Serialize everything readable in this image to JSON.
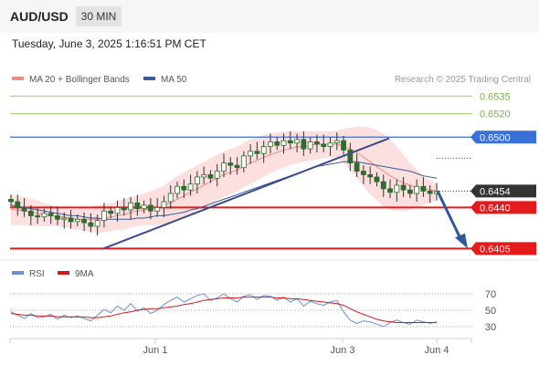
{
  "header": {
    "pair": "AUD/USD",
    "timeframe": "30 MIN",
    "datetime": "Tuesday, June 3, 2025 1:16:51 PM CET"
  },
  "credit": "Research © 2025 Trading Central",
  "colors": {
    "price_candle": "#2e6b2e",
    "ma20": "#f28b82",
    "ma50": "#3a5a9a",
    "bollinger_fill": "#fbd5d5",
    "support_red": "#e31b1b",
    "pivot_blue": "#3a6fd8",
    "resistance_green": "#9ccc65",
    "current_price_tag": "#333333",
    "rsi_line": "#6b8fd6",
    "rsi_9ma": "#d11a1a",
    "trend_line": "#3b4a8a",
    "forecast_arrow": "#2f5a99"
  },
  "chart_data": [
    {
      "type": "line",
      "title": "",
      "panel": "price",
      "legend": [
        {
          "name": "MA 20 + Bollinger Bands",
          "color": "#f28b82"
        },
        {
          "name": "MA 50",
          "color": "#3a5a9a"
        }
      ],
      "legend_position": "top-left",
      "x_ticks": [
        "Jun 1",
        "Jun 3",
        "Jun 4"
      ],
      "ylim": [
        0.6396,
        0.655
      ],
      "levels": [
        {
          "label": "0.6535",
          "value": 0.6535,
          "style": "resistance"
        },
        {
          "label": "0.6520",
          "value": 0.652,
          "style": "resistance"
        },
        {
          "label": "0.6500",
          "value": 0.65,
          "style": "pivot"
        },
        {
          "label": "0.6454",
          "value": 0.6454,
          "style": "current"
        },
        {
          "label": "0.6440",
          "value": 0.644,
          "style": "support"
        },
        {
          "label": "0.6405",
          "value": 0.6405,
          "style": "support"
        }
      ],
      "price_path": [
        0.6445,
        0.644,
        0.6437,
        0.6433,
        0.6432,
        0.6435,
        0.6433,
        0.643,
        0.6431,
        0.6428,
        0.643,
        0.6427,
        0.6424,
        0.6429,
        0.6437,
        0.6435,
        0.644,
        0.6438,
        0.6444,
        0.6439,
        0.6442,
        0.6437,
        0.644,
        0.6445,
        0.6452,
        0.6458,
        0.6455,
        0.646,
        0.6466,
        0.6468,
        0.6465,
        0.6471,
        0.6478,
        0.6476,
        0.6474,
        0.6484,
        0.6488,
        0.6486,
        0.6492,
        0.6496,
        0.6493,
        0.6497,
        0.6495,
        0.6498,
        0.649,
        0.6496,
        0.6494,
        0.6492,
        0.6495,
        0.6497,
        0.6489,
        0.6478,
        0.6471,
        0.6468,
        0.6466,
        0.6462,
        0.6456,
        0.6453,
        0.6459,
        0.6455,
        0.6452,
        0.6458,
        0.6454,
        0.6452,
        0.6454
      ],
      "ma20": [
        0.6438,
        0.6438,
        0.6437,
        0.6436,
        0.6435,
        0.6434,
        0.6433,
        0.6432,
        0.6432,
        0.6431,
        0.643,
        0.643,
        0.643,
        0.643,
        0.6431,
        0.6432,
        0.6433,
        0.6434,
        0.6436,
        0.6437,
        0.6438,
        0.6439,
        0.644,
        0.6442,
        0.6444,
        0.6447,
        0.645,
        0.6453,
        0.6456,
        0.6459,
        0.6462,
        0.6465,
        0.6468,
        0.647,
        0.6472,
        0.6475,
        0.6478,
        0.648,
        0.6483,
        0.6485,
        0.6487,
        0.6489,
        0.649,
        0.6492,
        0.6492,
        0.6493,
        0.6494,
        0.6494,
        0.6494,
        0.6494,
        0.6492,
        0.649,
        0.6487,
        0.6483,
        0.6479,
        0.6475,
        0.6471,
        0.6467,
        0.6464,
        0.6461,
        0.6459,
        0.6457,
        0.6456,
        0.6455,
        0.6454
      ],
      "bb_upper": [
        0.6451,
        0.645,
        0.6449,
        0.6448,
        0.6446,
        0.6444,
        0.6442,
        0.644,
        0.644,
        0.6439,
        0.6439,
        0.644,
        0.6441,
        0.6442,
        0.6443,
        0.6444,
        0.6445,
        0.6447,
        0.6449,
        0.645,
        0.6452,
        0.6454,
        0.6456,
        0.6459,
        0.6463,
        0.6467,
        0.647,
        0.6473,
        0.6476,
        0.6479,
        0.6482,
        0.6485,
        0.6488,
        0.649,
        0.6492,
        0.6495,
        0.6498,
        0.65,
        0.6502,
        0.6503,
        0.6504,
        0.6505,
        0.6505,
        0.6505,
        0.6505,
        0.6505,
        0.6505,
        0.6505,
        0.6505,
        0.6506,
        0.6507,
        0.6508,
        0.6509,
        0.6509,
        0.6508,
        0.6506,
        0.6503,
        0.6498,
        0.6492,
        0.6485,
        0.6478,
        0.6472,
        0.6467,
        0.6463,
        0.646
      ],
      "bb_lower": [
        0.6425,
        0.6425,
        0.6425,
        0.6424,
        0.6424,
        0.6424,
        0.6424,
        0.6424,
        0.6423,
        0.6422,
        0.6421,
        0.642,
        0.6419,
        0.6418,
        0.6419,
        0.642,
        0.6421,
        0.6421,
        0.6423,
        0.6424,
        0.6425,
        0.6425,
        0.6425,
        0.6426,
        0.6427,
        0.6429,
        0.6431,
        0.6434,
        0.6437,
        0.644,
        0.6443,
        0.6446,
        0.6449,
        0.6451,
        0.6454,
        0.6457,
        0.646,
        0.6463,
        0.6466,
        0.6469,
        0.6472,
        0.6474,
        0.6476,
        0.6478,
        0.6479,
        0.648,
        0.6481,
        0.6482,
        0.6483,
        0.6482,
        0.6478,
        0.6472,
        0.6465,
        0.6458,
        0.6451,
        0.6446,
        0.6441,
        0.6438,
        0.6437,
        0.6437,
        0.6438,
        0.644,
        0.6442,
        0.6444,
        0.6446
      ],
      "ma50": [
        0.6442,
        0.6441,
        0.644,
        0.6439,
        0.6438,
        0.6437,
        0.6436,
        0.6435,
        0.6434,
        0.6433,
        0.6433,
        0.6432,
        0.6431,
        0.6431,
        0.643,
        0.643,
        0.643,
        0.643,
        0.643,
        0.6431,
        0.6431,
        0.6432,
        0.6433,
        0.6433,
        0.6434,
        0.6435,
        0.6436,
        0.6438,
        0.6439,
        0.6441,
        0.6443,
        0.6445,
        0.6447,
        0.6449,
        0.6451,
        0.6453,
        0.6455,
        0.6457,
        0.6459,
        0.6461,
        0.6463,
        0.6465,
        0.6467,
        0.6469,
        0.6471,
        0.6473,
        0.6475,
        0.6476,
        0.6477,
        0.6478,
        0.6479,
        0.6479,
        0.6479,
        0.6478,
        0.6477,
        0.6476,
        0.6475,
        0.6474,
        0.6473,
        0.6472,
        0.6471,
        0.6469,
        0.6467,
        0.6466,
        0.6465
      ]
    },
    {
      "type": "line",
      "panel": "rsi",
      "legend": [
        {
          "name": "RSI",
          "color": "#6b8fd6"
        },
        {
          "name": "9MA",
          "color": "#d11a1a"
        }
      ],
      "legend_position": "top-left",
      "ylim": [
        20,
        80
      ],
      "y_ticks": [
        "70",
        "50",
        "30"
      ],
      "rsi": [
        48,
        44,
        40,
        46,
        41,
        42,
        45,
        39,
        44,
        41,
        43,
        40,
        37,
        44,
        51,
        47,
        55,
        50,
        58,
        49,
        53,
        46,
        50,
        57,
        62,
        66,
        60,
        64,
        68,
        70,
        62,
        65,
        70,
        64,
        60,
        67,
        69,
        63,
        68,
        67,
        62,
        66,
        60,
        64,
        55,
        61,
        58,
        56,
        60,
        62,
        48,
        38,
        34,
        37,
        36,
        33,
        30,
        35,
        38,
        35,
        33,
        38,
        36,
        34,
        36
      ],
      "ma9": [
        46,
        45,
        44,
        44,
        43,
        43,
        43,
        42,
        42,
        42,
        42,
        42,
        41,
        41,
        42,
        43,
        45,
        47,
        48,
        50,
        51,
        52,
        52,
        53,
        54,
        55,
        57,
        58,
        60,
        62,
        63,
        64,
        65,
        65,
        65,
        66,
        66,
        66,
        66,
        66,
        65,
        65,
        64,
        64,
        63,
        62,
        61,
        60,
        59,
        58,
        56,
        52,
        48,
        45,
        42,
        39,
        37,
        36,
        35,
        35,
        35,
        35,
        35,
        35,
        35
      ]
    }
  ]
}
